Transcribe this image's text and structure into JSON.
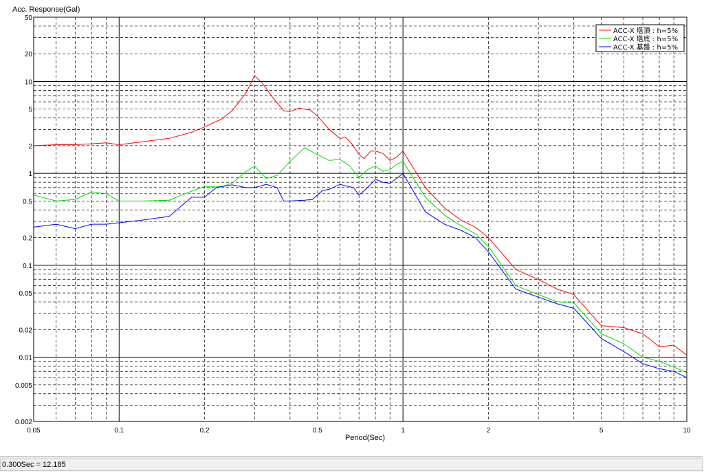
{
  "status_bar": {
    "readout": "0.300Sec = 12.185"
  },
  "chart_data": {
    "type": "line",
    "ylabel": "Acc. Response(Gal)",
    "xlabel": "Period(Sec)",
    "x_scale": "log",
    "y_scale": "log",
    "xlim": [
      0.05,
      10
    ],
    "ylim": [
      0.002,
      50
    ],
    "grid": true,
    "legend_position": "top-right",
    "x_tick_labels": [
      {
        "value": 0.05,
        "label": "0.05"
      },
      {
        "value": 0.1,
        "label": "0.1"
      },
      {
        "value": 0.2,
        "label": "0.2"
      },
      {
        "value": 0.5,
        "label": "0.5"
      },
      {
        "value": 1,
        "label": "1"
      },
      {
        "value": 2,
        "label": "2"
      },
      {
        "value": 5,
        "label": "5"
      },
      {
        "value": 10,
        "label": "10"
      }
    ],
    "y_tick_labels": [
      {
        "value": 50,
        "label": "50"
      },
      {
        "value": 20,
        "label": "20"
      },
      {
        "value": 10,
        "label": "10"
      },
      {
        "value": 5,
        "label": "5"
      },
      {
        "value": 2,
        "label": "2"
      },
      {
        "value": 1,
        "label": "1"
      },
      {
        "value": 0.5,
        "label": "0.5"
      },
      {
        "value": 0.2,
        "label": "0.2"
      },
      {
        "value": 0.1,
        "label": "0.1"
      },
      {
        "value": 0.05,
        "label": "0.05"
      },
      {
        "value": 0.02,
        "label": "0.02"
      },
      {
        "value": 0.01,
        "label": "0.01"
      },
      {
        "value": 0.005,
        "label": "0.005"
      },
      {
        "value": 0.002,
        "label": "0.002"
      }
    ],
    "series": [
      {
        "name": "ACC-X 塔頂 : h=5%",
        "color": "#ff0000",
        "points": [
          [
            0.05,
            2.0
          ],
          [
            0.06,
            2.05
          ],
          [
            0.07,
            2.05
          ],
          [
            0.08,
            2.1
          ],
          [
            0.09,
            2.15
          ],
          [
            0.1,
            2.05
          ],
          [
            0.12,
            2.2
          ],
          [
            0.15,
            2.4
          ],
          [
            0.18,
            2.8
          ],
          [
            0.2,
            3.2
          ],
          [
            0.23,
            3.9
          ],
          [
            0.25,
            4.8
          ],
          [
            0.28,
            7.5
          ],
          [
            0.3,
            11.6
          ],
          [
            0.32,
            9.5
          ],
          [
            0.35,
            6.5
          ],
          [
            0.38,
            4.8
          ],
          [
            0.4,
            4.7
          ],
          [
            0.43,
            5.1
          ],
          [
            0.47,
            4.9
          ],
          [
            0.5,
            4.2
          ],
          [
            0.55,
            3.0
          ],
          [
            0.6,
            2.4
          ],
          [
            0.63,
            2.45
          ],
          [
            0.66,
            2.1
          ],
          [
            0.7,
            1.6
          ],
          [
            0.73,
            1.45
          ],
          [
            0.77,
            1.75
          ],
          [
            0.8,
            1.75
          ],
          [
            0.85,
            1.65
          ],
          [
            0.9,
            1.38
          ],
          [
            0.95,
            1.5
          ],
          [
            1.0,
            1.75
          ],
          [
            1.2,
            0.7
          ],
          [
            1.4,
            0.42
          ],
          [
            1.6,
            0.31
          ],
          [
            1.8,
            0.26
          ],
          [
            2.0,
            0.2
          ],
          [
            2.5,
            0.09
          ],
          [
            3.0,
            0.07
          ],
          [
            3.5,
            0.055
          ],
          [
            4.0,
            0.048
          ],
          [
            5.0,
            0.022
          ],
          [
            6.0,
            0.021
          ],
          [
            7.0,
            0.018
          ],
          [
            8.0,
            0.013
          ],
          [
            9.0,
            0.0135
          ],
          [
            10.0,
            0.0105
          ]
        ]
      },
      {
        "name": "ACC-X 塔底 : h=5%",
        "color": "#00e000",
        "points": [
          [
            0.05,
            0.58
          ],
          [
            0.06,
            0.5
          ],
          [
            0.07,
            0.52
          ],
          [
            0.08,
            0.63
          ],
          [
            0.09,
            0.6
          ],
          [
            0.1,
            0.5
          ],
          [
            0.12,
            0.5
          ],
          [
            0.15,
            0.51
          ],
          [
            0.18,
            0.64
          ],
          [
            0.2,
            0.72
          ],
          [
            0.23,
            0.72
          ],
          [
            0.25,
            0.78
          ],
          [
            0.28,
            1.05
          ],
          [
            0.3,
            1.2
          ],
          [
            0.33,
            0.88
          ],
          [
            0.36,
            0.95
          ],
          [
            0.4,
            1.35
          ],
          [
            0.45,
            1.9
          ],
          [
            0.5,
            1.6
          ],
          [
            0.55,
            1.38
          ],
          [
            0.6,
            1.42
          ],
          [
            0.65,
            1.2
          ],
          [
            0.7,
            0.9
          ],
          [
            0.75,
            1.1
          ],
          [
            0.8,
            1.2
          ],
          [
            0.85,
            1.05
          ],
          [
            0.9,
            1.1
          ],
          [
            0.95,
            1.25
          ],
          [
            1.0,
            1.35
          ],
          [
            1.2,
            0.55
          ],
          [
            1.4,
            0.35
          ],
          [
            1.6,
            0.27
          ],
          [
            1.8,
            0.22
          ],
          [
            2.0,
            0.16
          ],
          [
            2.5,
            0.06
          ],
          [
            3.0,
            0.048
          ],
          [
            3.5,
            0.04
          ],
          [
            4.0,
            0.039
          ],
          [
            5.0,
            0.018
          ],
          [
            6.0,
            0.014
          ],
          [
            7.0,
            0.01
          ],
          [
            8.0,
            0.009
          ],
          [
            9.0,
            0.0078
          ],
          [
            10.0,
            0.0068
          ]
        ]
      },
      {
        "name": "ACC-X 基盤 : h=5%",
        "color": "#0000ff",
        "points": [
          [
            0.05,
            0.26
          ],
          [
            0.06,
            0.28
          ],
          [
            0.07,
            0.25
          ],
          [
            0.08,
            0.28
          ],
          [
            0.09,
            0.28
          ],
          [
            0.1,
            0.29
          ],
          [
            0.12,
            0.31
          ],
          [
            0.15,
            0.34
          ],
          [
            0.18,
            0.55
          ],
          [
            0.2,
            0.55
          ],
          [
            0.22,
            0.7
          ],
          [
            0.25,
            0.75
          ],
          [
            0.28,
            0.7
          ],
          [
            0.3,
            0.7
          ],
          [
            0.33,
            0.76
          ],
          [
            0.36,
            0.7
          ],
          [
            0.38,
            0.5
          ],
          [
            0.4,
            0.5
          ],
          [
            0.45,
            0.51
          ],
          [
            0.48,
            0.52
          ],
          [
            0.52,
            0.65
          ],
          [
            0.55,
            0.67
          ],
          [
            0.6,
            0.76
          ],
          [
            0.63,
            0.73
          ],
          [
            0.67,
            0.7
          ],
          [
            0.7,
            0.58
          ],
          [
            0.75,
            0.7
          ],
          [
            0.8,
            0.86
          ],
          [
            0.85,
            0.8
          ],
          [
            0.9,
            0.78
          ],
          [
            0.95,
            0.88
          ],
          [
            1.0,
            1.0
          ],
          [
            1.2,
            0.38
          ],
          [
            1.4,
            0.28
          ],
          [
            1.6,
            0.24
          ],
          [
            1.8,
            0.2
          ],
          [
            2.0,
            0.14
          ],
          [
            2.5,
            0.055
          ],
          [
            3.0,
            0.045
          ],
          [
            3.5,
            0.038
          ],
          [
            4.0,
            0.034
          ],
          [
            5.0,
            0.016
          ],
          [
            6.0,
            0.0115
          ],
          [
            7.0,
            0.0085
          ],
          [
            8.0,
            0.0075
          ],
          [
            9.0,
            0.007
          ],
          [
            10.0,
            0.006
          ]
        ]
      }
    ]
  }
}
